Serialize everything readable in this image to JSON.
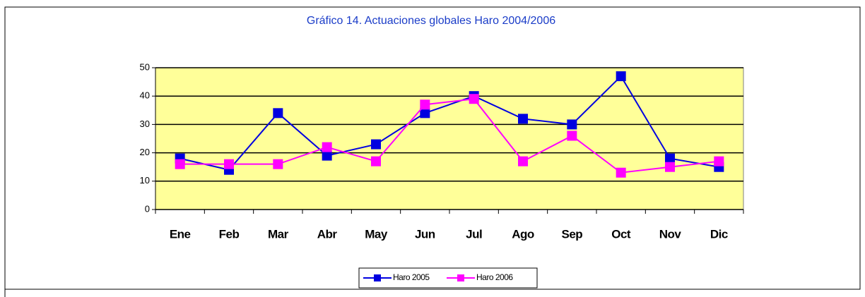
{
  "chart_data": {
    "type": "line",
    "title": "Gráfico 14. Actuaciones globales Haro 2004/2006",
    "categories": [
      "Ene",
      "Feb",
      "Mar",
      "Abr",
      "May",
      "Jun",
      "Jul",
      "Ago",
      "Sep",
      "Oct",
      "Nov",
      "Dic"
    ],
    "series": [
      {
        "name": "Haro 2005",
        "color": "#0000e0",
        "values": [
          18,
          14,
          34,
          19,
          23,
          34,
          40,
          32,
          30,
          47,
          18,
          15
        ]
      },
      {
        "name": "Haro 2006",
        "color": "#ff00ff",
        "values": [
          16,
          16,
          16,
          22,
          17,
          37,
          39,
          17,
          26,
          13,
          15,
          17
        ]
      }
    ],
    "ylim": [
      0,
      50
    ],
    "yticks": [
      0,
      10,
      20,
      30,
      40,
      50
    ],
    "grid": true,
    "legend": "bottom"
  }
}
